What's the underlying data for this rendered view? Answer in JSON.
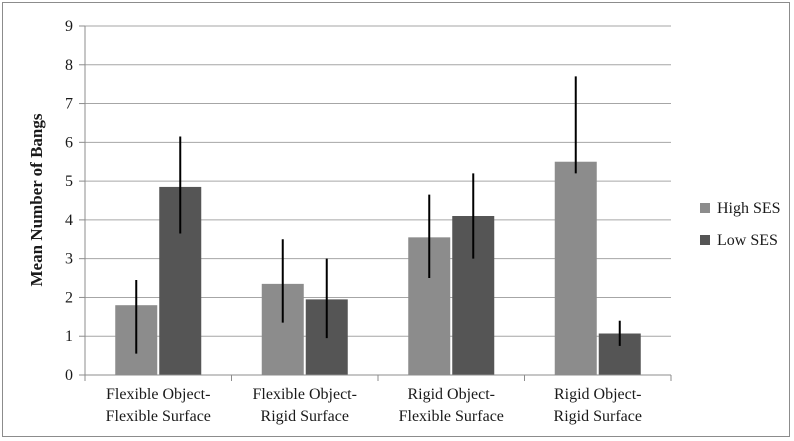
{
  "chart_data": {
    "type": "bar",
    "title": "",
    "xlabel": "",
    "ylabel": "Mean Number of Bangs",
    "ylim": [
      0,
      9
    ],
    "yticks": [
      0,
      1,
      2,
      3,
      4,
      5,
      6,
      7,
      8,
      9
    ],
    "grid": true,
    "legend_position": "right",
    "categories": [
      [
        "Flexible Object-",
        "Flexible Surface"
      ],
      [
        "Flexible Object-",
        "Rigid Surface"
      ],
      [
        "Rigid Object-",
        "Flexible Surface"
      ],
      [
        "Rigid Object-",
        "Rigid Surface"
      ]
    ],
    "series": [
      {
        "name": "High SES",
        "color": "#8c8c8c",
        "values": [
          1.8,
          2.35,
          3.55,
          5.5
        ],
        "error_low": [
          0.55,
          1.35,
          2.5,
          5.2
        ],
        "error_high": [
          2.45,
          3.5,
          4.65,
          7.7
        ]
      },
      {
        "name": "Low SES",
        "color": "#555555",
        "values": [
          4.85,
          1.95,
          4.1,
          1.07
        ],
        "error_low": [
          3.65,
          0.95,
          3.0,
          0.75
        ],
        "error_high": [
          6.15,
          3.0,
          5.2,
          1.4
        ]
      }
    ]
  }
}
